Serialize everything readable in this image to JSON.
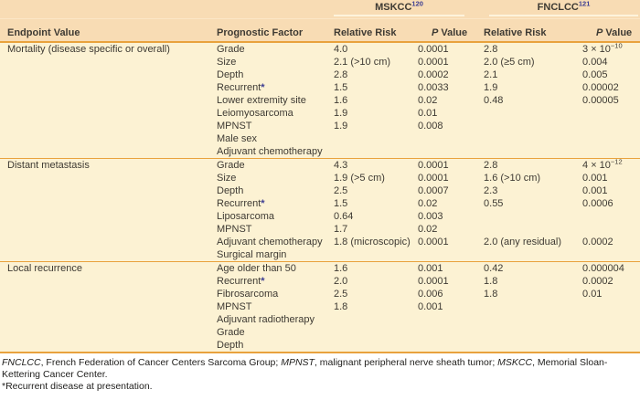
{
  "table": {
    "col_headers": {
      "endpoint": "Endpoint Value",
      "factor": "Prognostic Factor",
      "relative_risk": "Relative Risk",
      "p_value": "P Value"
    },
    "groups": [
      {
        "name": "MSKCC",
        "ref": "120"
      },
      {
        "name": "FNCLCC",
        "ref": "121"
      }
    ],
    "sections": [
      {
        "endpoint": "Mortality (disease specific or overall)",
        "rows": [
          {
            "factor": "Grade",
            "mskcc_rr": "4.0",
            "mskcc_p": "0.0001",
            "fnclcc_rr": "2.8",
            "fnclcc_p": "3 × 10^−10"
          },
          {
            "factor": "Size",
            "mskcc_rr": "2.1 (>10 cm)",
            "mskcc_p": "0.0001",
            "fnclcc_rr": "2.0 (≥5 cm)",
            "fnclcc_p": "0.004"
          },
          {
            "factor": "Depth",
            "mskcc_rr": "2.8",
            "mskcc_p": "0.0002",
            "fnclcc_rr": "2.1",
            "fnclcc_p": "0.005"
          },
          {
            "factor": "Recurrent*",
            "mskcc_rr": "1.5",
            "mskcc_p": "0.0033",
            "fnclcc_rr": "1.9",
            "fnclcc_p": "0.00002"
          },
          {
            "factor": "Lower extremity site",
            "mskcc_rr": "1.6",
            "mskcc_p": "0.02",
            "fnclcc_rr": "0.48",
            "fnclcc_p": "0.00005"
          },
          {
            "factor": "Leiomyosarcoma",
            "mskcc_rr": "1.9",
            "mskcc_p": "0.01",
            "fnclcc_rr": "",
            "fnclcc_p": ""
          },
          {
            "factor": "MPNST",
            "mskcc_rr": "1.9",
            "mskcc_p": "0.008",
            "fnclcc_rr": "",
            "fnclcc_p": ""
          },
          {
            "factor": "Male sex",
            "mskcc_rr": "",
            "mskcc_p": "",
            "fnclcc_rr": "",
            "fnclcc_p": ""
          },
          {
            "factor": "Adjuvant chemotherapy",
            "mskcc_rr": "",
            "mskcc_p": "",
            "fnclcc_rr": "",
            "fnclcc_p": ""
          }
        ]
      },
      {
        "endpoint": "Distant metastasis",
        "rows": [
          {
            "factor": "Grade",
            "mskcc_rr": "4.3",
            "mskcc_p": "0.0001",
            "fnclcc_rr": "2.8",
            "fnclcc_p": "4 × 10^−12"
          },
          {
            "factor": "Size",
            "mskcc_rr": "1.9 (>5 cm)",
            "mskcc_p": "0.0001",
            "fnclcc_rr": "1.6 (>10 cm)",
            "fnclcc_p": "0.001"
          },
          {
            "factor": "Depth",
            "mskcc_rr": "2.5",
            "mskcc_p": "0.0007",
            "fnclcc_rr": "2.3",
            "fnclcc_p": "0.001"
          },
          {
            "factor": "Recurrent*",
            "mskcc_rr": "1.5",
            "mskcc_p": "0.02",
            "fnclcc_rr": "0.55",
            "fnclcc_p": "0.0006"
          },
          {
            "factor": "Liposarcoma",
            "mskcc_rr": "0.64",
            "mskcc_p": "0.003",
            "fnclcc_rr": "",
            "fnclcc_p": ""
          },
          {
            "factor": "MPNST",
            "mskcc_rr": "1.7",
            "mskcc_p": "0.02",
            "fnclcc_rr": "",
            "fnclcc_p": ""
          },
          {
            "factor": "Adjuvant chemotherapy",
            "mskcc_rr": "1.8 (microscopic)",
            "mskcc_p": "0.0001",
            "fnclcc_rr": "2.0 (any residual)",
            "fnclcc_p": "0.0002"
          },
          {
            "factor": "Surgical margin",
            "mskcc_rr": "",
            "mskcc_p": "",
            "fnclcc_rr": "",
            "fnclcc_p": ""
          }
        ]
      },
      {
        "endpoint": "Local recurrence",
        "rows": [
          {
            "factor": "Age older than 50",
            "mskcc_rr": "1.6",
            "mskcc_p": "0.001",
            "fnclcc_rr": "0.42",
            "fnclcc_p": "0.000004"
          },
          {
            "factor": "Recurrent*",
            "mskcc_rr": "2.0",
            "mskcc_p": "0.0001",
            "fnclcc_rr": "1.8",
            "fnclcc_p": "0.0002"
          },
          {
            "factor": "Fibrosarcoma",
            "mskcc_rr": "2.5",
            "mskcc_p": "0.006",
            "fnclcc_rr": "1.8",
            "fnclcc_p": "0.01"
          },
          {
            "factor": "MPNST",
            "mskcc_rr": "1.8",
            "mskcc_p": "0.001",
            "fnclcc_rr": "",
            "fnclcc_p": ""
          },
          {
            "factor": "Adjuvant radiotherapy",
            "mskcc_rr": "",
            "mskcc_p": "",
            "fnclcc_rr": "",
            "fnclcc_p": ""
          },
          {
            "factor": "Grade",
            "mskcc_rr": "",
            "mskcc_p": "",
            "fnclcc_rr": "",
            "fnclcc_p": ""
          },
          {
            "factor": "Depth",
            "mskcc_rr": "",
            "mskcc_p": "",
            "fnclcc_rr": "",
            "fnclcc_p": ""
          }
        ]
      }
    ]
  },
  "footnotes": {
    "abbrev_segments": [
      {
        "text": "FNCLCC",
        "italic": true
      },
      {
        "text": ", French Federation of Cancer Centers Sarcoma Group; ",
        "italic": false
      },
      {
        "text": "MPNST",
        "italic": true
      },
      {
        "text": ", malignant peripheral nerve sheath tumor; ",
        "italic": false
      },
      {
        "text": "MSKCC",
        "italic": true
      },
      {
        "text": ", Memorial Sloan-Kettering Cancer Center.",
        "italic": false
      }
    ],
    "asterisk_note": "*Recurrent disease at presentation."
  },
  "colors": {
    "header_band": "#f8dcb4",
    "body_band": "#fcf2d3",
    "accent_line": "#e9a23d",
    "reference_color": "#3d3e92"
  }
}
